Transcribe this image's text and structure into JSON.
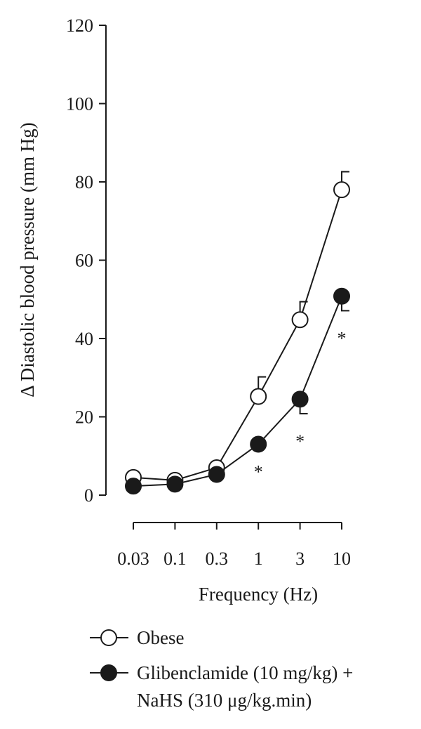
{
  "chart_data": {
    "type": "line",
    "title": "",
    "xlabel": "Frequency (Hz)",
    "ylabel": "Δ Diastolic blood pressure (mm Hg)",
    "x_scale": "categorical",
    "categories": [
      "0.03",
      "0.1",
      "0.3",
      "1",
      "3",
      "10"
    ],
    "ylim": [
      0,
      120
    ],
    "yticks": [
      0,
      20,
      40,
      60,
      80,
      100,
      120
    ],
    "grid": false,
    "legend_position": "bottom-left",
    "error_bars": "upper for Obese, lower for treated group",
    "significance_marker": "*",
    "series": [
      {
        "name": "Obese",
        "marker": "open-circle",
        "color": "#1a1a1a",
        "values": [
          4.5,
          3.8,
          7.0,
          25.2,
          44.8,
          78.0
        ],
        "error": [
          0,
          0,
          0,
          5.0,
          4.6,
          4.6
        ]
      },
      {
        "name": "Glibenclamide (10 mg/kg) + NaHS (310 μg/kg.min)",
        "legend_lines": [
          "Glibenclamide (10 mg/kg) +",
          "NaHS (310 μg/kg.min)"
        ],
        "marker": "filled-circle",
        "color": "#1a1a1a",
        "values": [
          2.3,
          2.8,
          5.3,
          13.0,
          24.5,
          50.8
        ],
        "error": [
          0,
          0,
          0,
          0,
          3.7,
          3.7
        ],
        "significant": [
          false,
          false,
          false,
          true,
          true,
          true
        ]
      }
    ]
  }
}
